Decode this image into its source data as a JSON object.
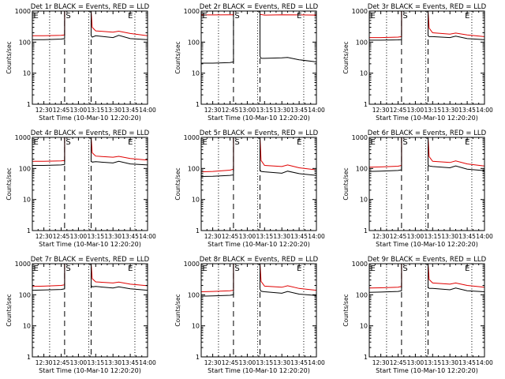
{
  "colors": {
    "events": "#000000",
    "lld": "#e00000",
    "axis": "#000000",
    "background": "#ffffff"
  },
  "chart_data": [
    {
      "type": "line",
      "title": "Det 1r BLACK = Events, RED = LLD",
      "xlabel": "Start Time (10-Mar-10 12:20:20)",
      "ylabel": "Counts/sec",
      "xlim": [
        "12:20",
        "14:00"
      ],
      "ylim": [
        1,
        1000
      ],
      "log_y": true,
      "x_ticks": [
        "12:30",
        "12:45",
        "13:00",
        "13:15",
        "13:30",
        "13:45",
        "14:00"
      ],
      "y_ticks": [
        "1",
        "10",
        "100",
        "1000"
      ],
      "dotted_lines": [
        "12:35",
        "13:09",
        "13:49"
      ],
      "dashed_lines": [
        "12:48",
        "13:11"
      ],
      "markers": [
        {
          "label": "E",
          "at": "12:21"
        },
        {
          "label": "S",
          "at": "12:49"
        },
        {
          "label": "E",
          "at": "13:43"
        }
      ],
      "gap": [
        "12:48",
        "13:11"
      ],
      "series": [
        {
          "x": [
            "12:20",
            "12:30",
            "12:45",
            "12:48",
            "13:11",
            "13:12",
            "13:15",
            "13:30",
            "13:35",
            "13:45",
            "14:00"
          ],
          "y": [
            160,
            160,
            165,
            170,
            1000,
            300,
            230,
            210,
            225,
            190,
            160
          ]
        },
        {
          "x": [
            "12:20",
            "12:30",
            "12:45",
            "12:48",
            "13:11",
            "13:12",
            "13:15",
            "13:30",
            "13:35",
            "13:45",
            "14:00"
          ],
          "y": [
            120,
            120,
            125,
            130,
            160,
            145,
            160,
            140,
            165,
            130,
            120
          ]
        }
      ]
    },
    {
      "type": "line",
      "title": "Det 2r BLACK = Events, RED = LLD",
      "xlabel": "Start Time (10-Mar-10 12:20:20)",
      "ylabel": "Counts/sec",
      "xlim": [
        "12:20",
        "14:00"
      ],
      "ylim": [
        1,
        1000
      ],
      "log_y": true,
      "x_ticks": [
        "12:30",
        "12:45",
        "13:00",
        "13:15",
        "13:30",
        "13:45",
        "14:00"
      ],
      "y_ticks": [
        "1",
        "10",
        "100",
        "1000"
      ],
      "dotted_lines": [
        "12:35",
        "13:09",
        "13:49"
      ],
      "dashed_lines": [
        "12:48",
        "13:11"
      ],
      "markers": [
        {
          "label": "E",
          "at": "12:21"
        },
        {
          "label": "S",
          "at": "12:49"
        },
        {
          "label": "E",
          "at": "13:43"
        }
      ],
      "gap": [
        "12:48",
        "13:11"
      ],
      "series": [
        {
          "x": [
            "12:20",
            "12:30",
            "12:45",
            "12:48",
            "13:11",
            "13:15",
            "13:30",
            "13:45",
            "14:00"
          ],
          "y": [
            750,
            750,
            760,
            760,
            780,
            740,
            760,
            750,
            740
          ]
        },
        {
          "x": [
            "12:20",
            "12:30",
            "12:45",
            "12:48",
            "13:11",
            "13:12",
            "13:15",
            "13:30",
            "13:35",
            "13:45",
            "14:00"
          ],
          "y": [
            21,
            21,
            22,
            23,
            35,
            30,
            30,
            31,
            32,
            27,
            23
          ]
        }
      ]
    },
    {
      "type": "line",
      "title": "Det 3r BLACK = Events, RED = LLD",
      "xlabel": "Start Time (10-Mar-10 12:20:20)",
      "ylabel": "Counts/sec",
      "xlim": [
        "12:20",
        "14:00"
      ],
      "ylim": [
        1,
        1000
      ],
      "log_y": true,
      "x_ticks": [
        "12:30",
        "12:45",
        "13:00",
        "13:15",
        "13:30",
        "13:45",
        "14:00"
      ],
      "y_ticks": [
        "1",
        "10",
        "100",
        "1000"
      ],
      "dotted_lines": [
        "12:35",
        "13:09",
        "13:49"
      ],
      "dashed_lines": [
        "12:48",
        "13:11"
      ],
      "markers": [
        {
          "label": "E",
          "at": "12:21"
        },
        {
          "label": "S",
          "at": "12:49"
        },
        {
          "label": "E",
          "at": "13:43"
        }
      ],
      "gap": [
        "12:48",
        "13:11"
      ],
      "series": [
        {
          "x": [
            "12:20",
            "12:30",
            "12:45",
            "12:48",
            "13:11",
            "13:12",
            "13:15",
            "13:30",
            "13:35",
            "13:45",
            "14:00"
          ],
          "y": [
            140,
            140,
            145,
            150,
            1000,
            280,
            200,
            180,
            195,
            170,
            150
          ]
        },
        {
          "x": [
            "12:20",
            "12:30",
            "12:45",
            "12:48",
            "13:11",
            "13:12",
            "13:15",
            "13:30",
            "13:35",
            "13:45",
            "14:00"
          ],
          "y": [
            115,
            115,
            118,
            120,
            160,
            150,
            150,
            140,
            155,
            130,
            120
          ]
        }
      ]
    },
    {
      "type": "line",
      "title": "Det 4r BLACK = Events, RED = LLD",
      "xlabel": "Start Time (10-Mar-10 12:20:20)",
      "ylabel": "Counts/sec",
      "xlim": [
        "12:20",
        "14:00"
      ],
      "ylim": [
        1,
        1000
      ],
      "log_y": true,
      "x_ticks": [
        "12:30",
        "12:45",
        "13:00",
        "13:15",
        "13:30",
        "13:45",
        "14:00"
      ],
      "y_ticks": [
        "1",
        "10",
        "100",
        "1000"
      ],
      "dotted_lines": [
        "12:35",
        "13:09",
        "13:49"
      ],
      "dashed_lines": [
        "12:48",
        "13:11"
      ],
      "markers": [
        {
          "label": "E",
          "at": "12:21"
        },
        {
          "label": "S",
          "at": "12:49"
        },
        {
          "label": "E",
          "at": "13:43"
        }
      ],
      "gap": [
        "12:48",
        "13:11"
      ],
      "series": [
        {
          "x": [
            "12:20",
            "12:30",
            "12:45",
            "12:48",
            "13:11",
            "13:12",
            "13:15",
            "13:30",
            "13:35",
            "13:45",
            "14:00"
          ],
          "y": [
            170,
            170,
            175,
            180,
            1000,
            320,
            250,
            230,
            245,
            210,
            185
          ]
        },
        {
          "x": [
            "12:20",
            "12:30",
            "12:45",
            "12:48",
            "13:11",
            "13:12",
            "13:15",
            "13:30",
            "13:35",
            "13:45",
            "14:00"
          ],
          "y": [
            125,
            125,
            130,
            135,
            170,
            160,
            165,
            150,
            170,
            140,
            130
          ]
        }
      ]
    },
    {
      "type": "line",
      "title": "Det 5r BLACK = Events, RED = LLD",
      "xlabel": "Start Time (10-Mar-10 12:20:20)",
      "ylabel": "Counts/sec",
      "xlim": [
        "12:20",
        "14:00"
      ],
      "ylim": [
        1,
        1000
      ],
      "log_y": true,
      "x_ticks": [
        "12:30",
        "12:45",
        "13:00",
        "13:15",
        "13:30",
        "13:45",
        "14:00"
      ],
      "y_ticks": [
        "1",
        "10",
        "100",
        "1000"
      ],
      "dotted_lines": [
        "12:35",
        "13:09",
        "13:49"
      ],
      "dashed_lines": [
        "12:48",
        "13:11"
      ],
      "markers": [
        {
          "label": "E",
          "at": "12:21"
        },
        {
          "label": "S",
          "at": "12:49"
        },
        {
          "label": "E",
          "at": "13:43"
        }
      ],
      "gap": [
        "12:48",
        "13:11"
      ],
      "series": [
        {
          "x": [
            "12:20",
            "12:30",
            "12:45",
            "12:48",
            "13:11",
            "13:12",
            "13:15",
            "13:30",
            "13:35",
            "13:45",
            "14:00"
          ],
          "y": [
            78,
            80,
            88,
            95,
            1000,
            180,
            125,
            115,
            130,
            105,
            90
          ]
        },
        {
          "x": [
            "12:20",
            "12:30",
            "12:45",
            "12:48",
            "13:11",
            "13:12",
            "13:15",
            "13:30",
            "13:35",
            "13:45",
            "14:00"
          ],
          "y": [
            55,
            56,
            60,
            62,
            90,
            80,
            78,
            70,
            82,
            68,
            60
          ]
        }
      ]
    },
    {
      "type": "line",
      "title": "Det 6r BLACK = Events, RED = LLD",
      "xlabel": "Start Time (10-Mar-10 12:20:20)",
      "ylabel": "Counts/sec",
      "xlim": [
        "12:20",
        "14:00"
      ],
      "ylim": [
        1,
        1000
      ],
      "log_y": true,
      "x_ticks": [
        "12:30",
        "12:45",
        "13:00",
        "13:15",
        "13:30",
        "13:45",
        "14:00"
      ],
      "y_ticks": [
        "1",
        "10",
        "100",
        "1000"
      ],
      "dotted_lines": [
        "12:35",
        "13:09",
        "13:49"
      ],
      "dashed_lines": [
        "12:48",
        "13:11"
      ],
      "markers": [
        {
          "label": "E",
          "at": "12:21"
        },
        {
          "label": "S",
          "at": "12:49"
        },
        {
          "label": "E",
          "at": "13:43"
        }
      ],
      "gap": [
        "12:48",
        "13:11"
      ],
      "series": [
        {
          "x": [
            "12:20",
            "12:30",
            "12:45",
            "12:48",
            "13:11",
            "13:12",
            "13:15",
            "13:30",
            "13:35",
            "13:45",
            "14:00"
          ],
          "y": [
            110,
            112,
            118,
            125,
            1000,
            240,
            170,
            155,
            175,
            140,
            120
          ]
        },
        {
          "x": [
            "12:20",
            "12:30",
            "12:45",
            "12:48",
            "13:11",
            "13:12",
            "13:15",
            "13:30",
            "13:35",
            "13:45",
            "14:00"
          ],
          "y": [
            80,
            82,
            86,
            90,
            130,
            120,
            115,
            105,
            120,
            95,
            85
          ]
        }
      ]
    },
    {
      "type": "line",
      "title": "Det 7r BLACK = Events, RED = LLD",
      "xlabel": "Start Time (10-Mar-10 12:20:20)",
      "ylabel": "Counts/sec",
      "xlim": [
        "12:20",
        "14:00"
      ],
      "ylim": [
        1,
        1000
      ],
      "log_y": true,
      "x_ticks": [
        "12:30",
        "12:45",
        "13:00",
        "13:15",
        "13:30",
        "13:45",
        "14:00"
      ],
      "y_ticks": [
        "1",
        "10",
        "100",
        "1000"
      ],
      "dotted_lines": [
        "12:35",
        "13:09",
        "13:49"
      ],
      "dashed_lines": [
        "12:48",
        "13:11"
      ],
      "markers": [
        {
          "label": "E",
          "at": "12:21"
        },
        {
          "label": "S",
          "at": "12:49"
        },
        {
          "label": "E",
          "at": "13:43"
        }
      ],
      "gap": [
        "12:48",
        "13:11"
      ],
      "series": [
        {
          "x": [
            "12:20",
            "12:30",
            "12:45",
            "12:48",
            "13:11",
            "13:12",
            "13:15",
            "13:30",
            "13:35",
            "13:45",
            "14:00"
          ],
          "y": [
            185,
            190,
            200,
            210,
            1000,
            330,
            260,
            240,
            255,
            220,
            195
          ]
        },
        {
          "x": [
            "12:20",
            "12:30",
            "12:45",
            "12:48",
            "13:11",
            "13:12",
            "13:15",
            "13:30",
            "13:35",
            "13:45",
            "14:00"
          ],
          "y": [
            140,
            142,
            148,
            155,
            200,
            180,
            185,
            165,
            180,
            155,
            140
          ]
        }
      ]
    },
    {
      "type": "line",
      "title": "Det 8r BLACK = Events, RED = LLD",
      "xlabel": "Start Time (10-Mar-10 12:20:20)",
      "ylabel": "Counts/sec",
      "xlim": [
        "12:20",
        "14:00"
      ],
      "ylim": [
        1,
        1000
      ],
      "log_y": true,
      "x_ticks": [
        "12:30",
        "12:45",
        "13:00",
        "13:15",
        "13:30",
        "13:45",
        "14:00"
      ],
      "y_ticks": [
        "1",
        "10",
        "100",
        "1000"
      ],
      "dotted_lines": [
        "12:35",
        "13:09",
        "13:49"
      ],
      "dashed_lines": [
        "12:48",
        "13:11"
      ],
      "markers": [
        {
          "label": "E",
          "at": "12:21"
        },
        {
          "label": "S",
          "at": "12:49"
        },
        {
          "label": "E",
          "at": "13:43"
        }
      ],
      "gap": [
        "12:48",
        "13:11"
      ],
      "series": [
        {
          "x": [
            "12:20",
            "12:30",
            "12:45",
            "12:48",
            "13:11",
            "13:12",
            "13:15",
            "13:30",
            "13:35",
            "13:45",
            "14:00"
          ],
          "y": [
            125,
            128,
            135,
            140,
            1000,
            270,
            190,
            175,
            195,
            160,
            140
          ]
        },
        {
          "x": [
            "12:20",
            "12:30",
            "12:45",
            "12:48",
            "13:11",
            "13:12",
            "13:15",
            "13:30",
            "13:35",
            "13:45",
            "14:00"
          ],
          "y": [
            90,
            92,
            96,
            100,
            150,
            130,
            125,
            112,
            128,
            105,
            95
          ]
        }
      ]
    },
    {
      "type": "line",
      "title": "Det 9r BLACK = Events, RED = LLD",
      "xlabel": "Start Time (10-Mar-10 12:20:20)",
      "ylabel": "Counts/sec",
      "xlim": [
        "12:20",
        "14:00"
      ],
      "ylim": [
        1,
        1000
      ],
      "log_y": true,
      "x_ticks": [
        "12:30",
        "12:45",
        "13:00",
        "13:15",
        "13:30",
        "13:45",
        "14:00"
      ],
      "y_ticks": [
        "1",
        "10",
        "100",
        "1000"
      ],
      "dotted_lines": [
        "12:35",
        "13:09",
        "13:49"
      ],
      "dashed_lines": [
        "12:48",
        "13:11"
      ],
      "markers": [
        {
          "label": "E",
          "at": "12:21"
        },
        {
          "label": "S",
          "at": "12:49"
        },
        {
          "label": "E",
          "at": "13:43"
        }
      ],
      "gap": [
        "12:48",
        "13:11"
      ],
      "series": [
        {
          "x": [
            "12:20",
            "12:30",
            "12:45",
            "12:48",
            "13:11",
            "13:12",
            "13:15",
            "13:30",
            "13:35",
            "13:45",
            "14:00"
          ],
          "y": [
            165,
            168,
            175,
            185,
            1000,
            310,
            240,
            220,
            240,
            200,
            175
          ]
        },
        {
          "x": [
            "12:20",
            "12:30",
            "12:45",
            "12:48",
            "13:11",
            "13:12",
            "13:15",
            "13:30",
            "13:35",
            "13:45",
            "14:00"
          ],
          "y": [
            120,
            122,
            128,
            135,
            175,
            160,
            160,
            145,
            165,
            135,
            125
          ]
        }
      ]
    }
  ]
}
